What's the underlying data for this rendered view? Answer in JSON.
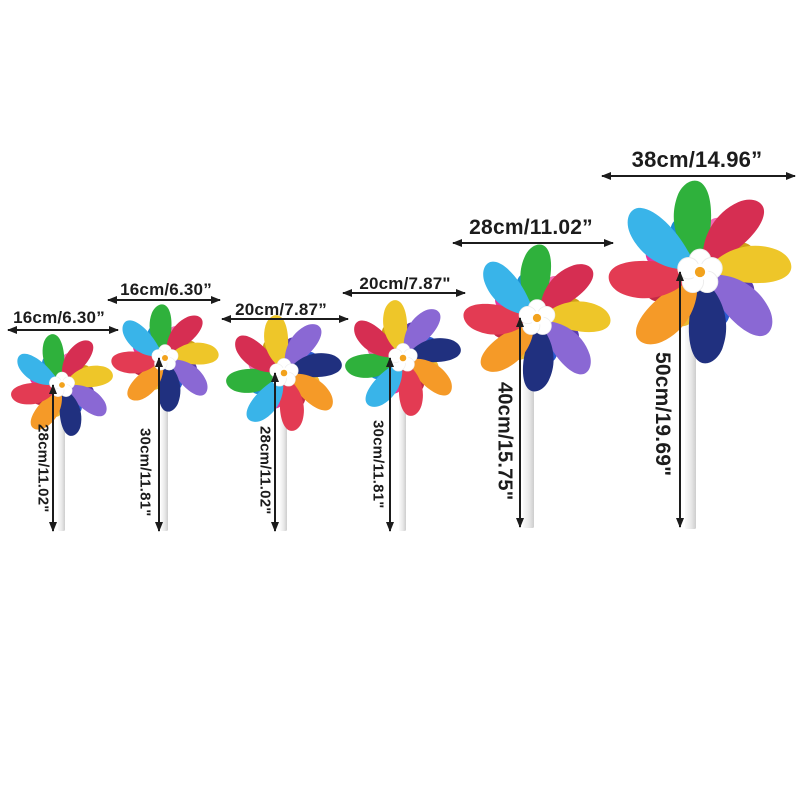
{
  "page": {
    "background": "#ffffff"
  },
  "annotation": {
    "arrow_color": "#1c1c1c",
    "text_color": "#1c1c1c"
  },
  "pinwheel": {
    "outer_colors": [
      "#2fb13c",
      "#d62e52",
      "#eec629",
      "#8a68d4",
      "#20307f",
      "#f59a28",
      "#e33b53",
      "#39b4e9"
    ],
    "inner_colors": [
      "#f46ab4",
      "#cfa018",
      "#5a3cae",
      "#2b5ad0",
      "#ecba32",
      "#c22a48",
      "#e7339b",
      "#1b8ed2"
    ],
    "hub_color": "#ffffff",
    "hub_center_color": "#f2a21d",
    "stick_color": "#e9e9e9"
  },
  "items": [
    {
      "name": "pinwheel-16x28",
      "width_cm": 16,
      "width_in": "6.30",
      "height_cm": 28,
      "height_in": "11.02",
      "width_label": "16cm/6.30”",
      "height_label": "28cm/11.02\""
    },
    {
      "name": "pinwheel-16x30",
      "width_cm": 16,
      "width_in": "6.30",
      "height_cm": 30,
      "height_in": "11.81",
      "width_label": "16cm/6.30”",
      "height_label": "30cm/11.81\""
    },
    {
      "name": "pinwheel-20x28",
      "width_cm": 20,
      "width_in": "7.87",
      "height_cm": 28,
      "height_in": "11.02",
      "width_label": "20cm/7.87”",
      "height_label": "28cm/11.02\""
    },
    {
      "name": "pinwheel-20x30",
      "width_cm": 20,
      "width_in": "7.87",
      "height_cm": 30,
      "height_in": "11.81",
      "width_label": "20cm/7.87\"",
      "height_label": "30cm/11.81\""
    },
    {
      "name": "pinwheel-28x40",
      "width_cm": 28,
      "width_in": "11.02",
      "height_cm": 40,
      "height_in": "15.75",
      "width_label": "28cm/11.02”",
      "height_label": "40cm/15.75\""
    },
    {
      "name": "pinwheel-38x50",
      "width_cm": 38,
      "width_in": "14.96",
      "height_cm": 50,
      "height_in": "19.69",
      "width_label": "38cm/14.96”",
      "height_label": "50cm/19.69\""
    }
  ]
}
